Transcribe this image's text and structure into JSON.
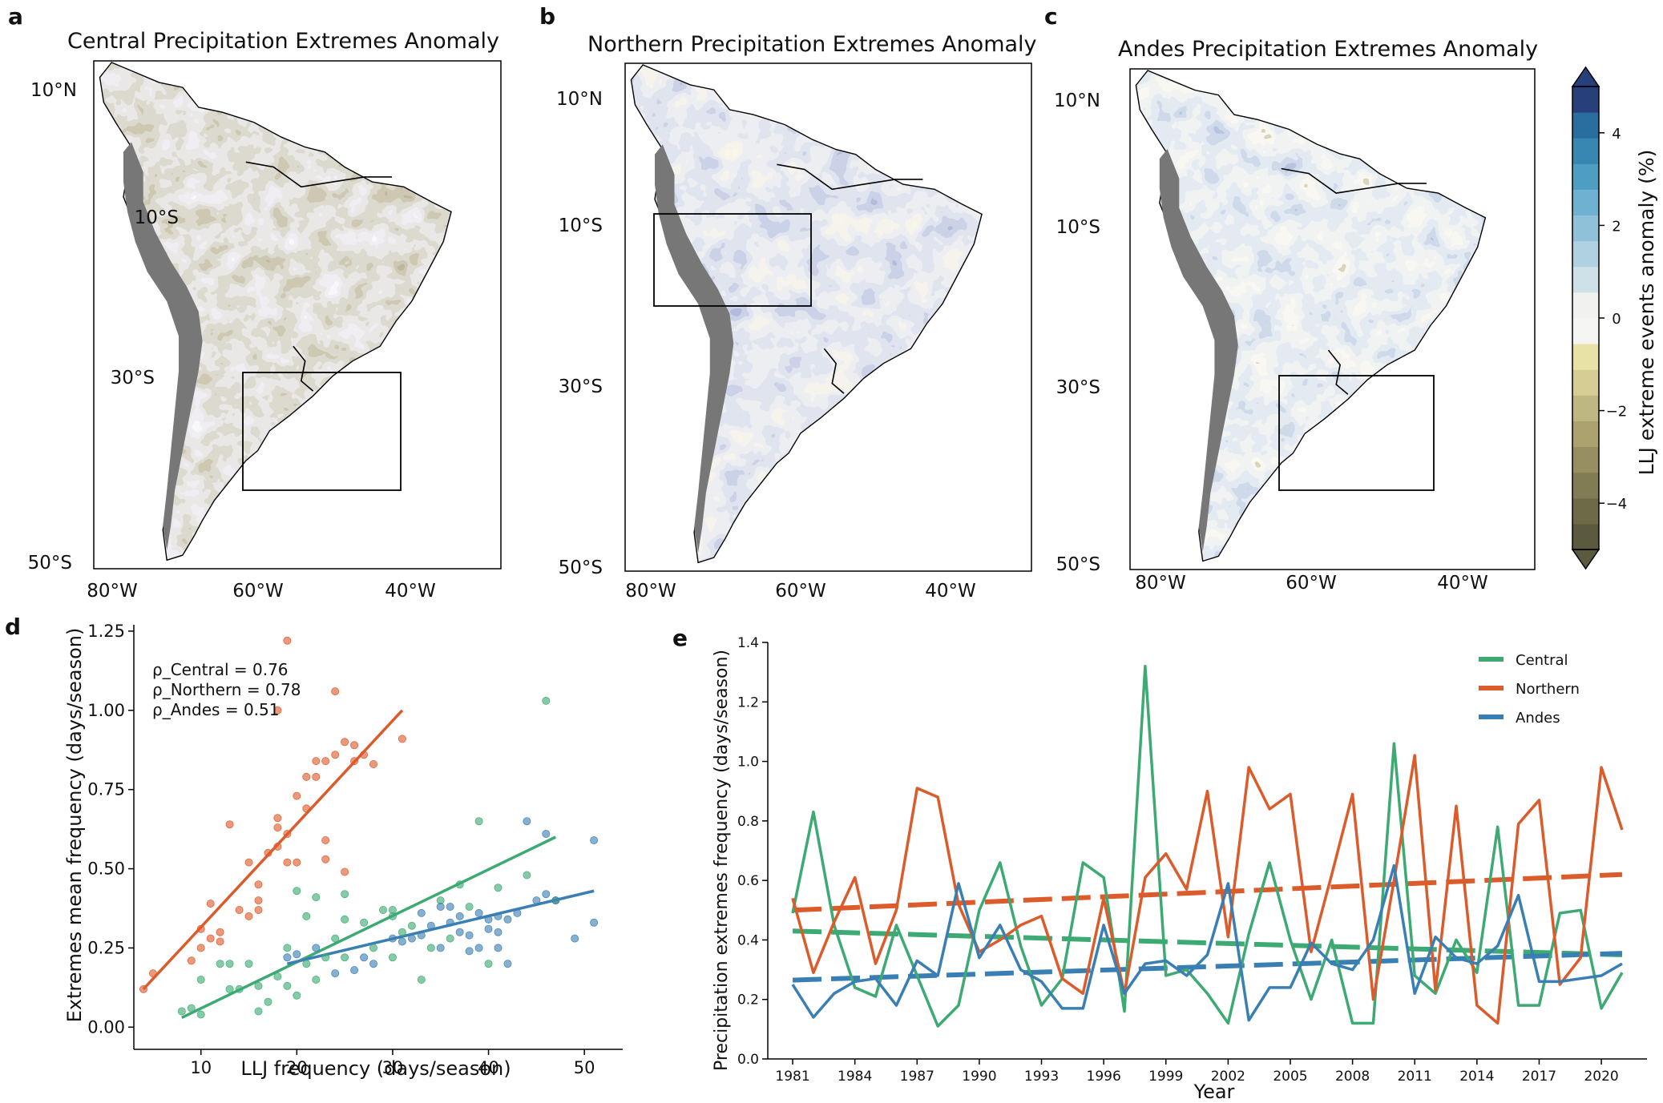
{
  "colors": {
    "central": "#3daa73",
    "northern": "#dc5b2b",
    "andes": "#3a7fb4",
    "ocean": "#ffffff",
    "andes_mask": "#777777",
    "box": "#000000",
    "cmap": [
      "#5b5a3f",
      "#6e6a48",
      "#827c54",
      "#978f61",
      "#aba270",
      "#bfb781",
      "#d6cd95",
      "#e8e2a6",
      "#f5f5f3",
      "#f1f1ef",
      "#cfe1e8",
      "#afd1e1",
      "#8fc2d9",
      "#6eb1d1",
      "#4e9dc3",
      "#3787b2",
      "#2a6e9f",
      "#273f7a"
    ]
  },
  "panels": {
    "a": {
      "letter": "a",
      "title": "Central Precipitation Extremes Anomaly",
      "lat_labels": [
        "10°N",
        "10°S",
        "30°S",
        "50°S"
      ],
      "lon_labels": [
        "80°W",
        "60°W",
        "40°W"
      ]
    },
    "b": {
      "letter": "b",
      "title": "Northern Precipitation Extremes Anomaly",
      "lat_labels": [
        "10°N",
        "10°S",
        "30°S",
        "50°S"
      ],
      "lon_labels": [
        "80°W",
        "60°W",
        "40°W"
      ]
    },
    "c": {
      "letter": "c",
      "title": "Andes Precipitation Extremes Anomaly",
      "lat_labels": [
        "10°N",
        "10°S",
        "30°S",
        "50°S"
      ],
      "lon_labels": [
        "80°W",
        "60°W",
        "40°W"
      ]
    },
    "d": {
      "letter": "d"
    },
    "e": {
      "letter": "e"
    }
  },
  "colorbar": {
    "label": "LLJ extreme events anomaly (%)",
    "ticks": [
      "4",
      "2",
      "0",
      "−2",
      "−4"
    ],
    "tick_values": [
      4,
      2,
      0,
      -2,
      -4
    ],
    "range": [
      -5,
      5
    ]
  },
  "chart_data": [
    {
      "type": "scatter",
      "panel": "d",
      "xlabel": "LLJ frequency (days/season)",
      "ylabel": "Extremes mean frequency (days/season)",
      "xlim": [
        3,
        54
      ],
      "ylim": [
        -0.07,
        1.27
      ],
      "xticks": [
        10,
        20,
        30,
        40,
        50
      ],
      "yticks": [
        0.0,
        0.25,
        0.5,
        0.75,
        1.0,
        1.25
      ],
      "ytick_labels": [
        "0.00",
        "0.25",
        "0.50",
        "0.75",
        "1.00",
        "1.25"
      ],
      "annotations": [
        "ρ_Central =  0.76",
        "ρ_Northern =  0.78",
        "ρ_Andes =  0.51"
      ],
      "series": [
        {
          "name": "Northern",
          "points": [
            [
              4,
              0.12
            ],
            [
              5,
              0.17
            ],
            [
              9,
              0.21
            ],
            [
              10,
              0.31
            ],
            [
              10,
              0.25
            ],
            [
              11,
              0.39
            ],
            [
              11,
              0.28
            ],
            [
              12,
              0.3
            ],
            [
              12,
              0.27
            ],
            [
              13,
              0.64
            ],
            [
              14,
              0.37
            ],
            [
              15,
              0.52
            ],
            [
              15,
              0.35
            ],
            [
              16,
              0.37
            ],
            [
              16,
              0.4
            ],
            [
              16,
              0.45
            ],
            [
              17,
              0.55
            ],
            [
              18,
              0.63
            ],
            [
              18,
              0.66
            ],
            [
              18,
              0.57
            ],
            [
              19,
              0.61
            ],
            [
              19,
              0.52
            ],
            [
              20,
              0.73
            ],
            [
              21,
              0.69
            ],
            [
              21,
              0.79
            ],
            [
              22,
              0.79
            ],
            [
              22,
              0.84
            ],
            [
              23,
              0.84
            ],
            [
              23,
              0.59
            ],
            [
              24,
              1.06
            ],
            [
              24,
              0.86
            ],
            [
              25,
              0.9
            ],
            [
              25,
              0.49
            ],
            [
              26,
              0.84
            ],
            [
              26,
              0.89
            ],
            [
              27,
              0.86
            ],
            [
              28,
              0.83
            ],
            [
              31,
              0.91
            ],
            [
              19,
              1.22
            ],
            [
              18,
              1.0
            ],
            [
              20,
              0.52
            ],
            [
              23,
              0.53
            ]
          ],
          "fit": [
            [
              4,
              0.12
            ],
            [
              31,
              1.0
            ]
          ]
        },
        {
          "name": "Central",
          "points": [
            [
              8,
              0.05
            ],
            [
              9,
              0.06
            ],
            [
              10,
              0.04
            ],
            [
              10,
              0.15
            ],
            [
              12,
              0.2
            ],
            [
              13,
              0.2
            ],
            [
              13,
              0.12
            ],
            [
              14,
              0.12
            ],
            [
              15,
              0.2
            ],
            [
              16,
              0.05
            ],
            [
              16,
              0.13
            ],
            [
              17,
              0.08
            ],
            [
              18,
              0.16
            ],
            [
              19,
              0.25
            ],
            [
              19,
              0.13
            ],
            [
              20,
              0.43
            ],
            [
              20,
              0.1
            ],
            [
              21,
              0.35
            ],
            [
              21,
              0.2
            ],
            [
              22,
              0.41
            ],
            [
              22,
              0.15
            ],
            [
              23,
              0.22
            ],
            [
              24,
              0.28
            ],
            [
              25,
              0.22
            ],
            [
              25,
              0.34
            ],
            [
              25,
              0.42
            ],
            [
              27,
              0.33
            ],
            [
              28,
              0.25
            ],
            [
              29,
              0.37
            ],
            [
              30,
              0.37
            ],
            [
              30,
              0.35
            ],
            [
              31,
              0.3
            ],
            [
              32,
              0.32
            ],
            [
              33,
              0.15
            ],
            [
              35,
              0.4
            ],
            [
              36,
              0.28
            ],
            [
              37,
              0.45
            ],
            [
              38,
              0.38
            ],
            [
              39,
              0.65
            ],
            [
              40,
              0.2
            ],
            [
              41,
              0.44
            ],
            [
              44,
              0.48
            ],
            [
              46,
              1.03
            ],
            [
              47,
              0.4
            ],
            [
              30,
              0.22
            ],
            [
              34,
              0.25
            ]
          ],
          "fit": [
            [
              8,
              0.03
            ],
            [
              47,
              0.6
            ]
          ]
        },
        {
          "name": "Andes",
          "points": [
            [
              19,
              0.22
            ],
            [
              20,
              0.23
            ],
            [
              22,
              0.25
            ],
            [
              24,
              0.17
            ],
            [
              26,
              0.18
            ],
            [
              28,
              0.2
            ],
            [
              30,
              0.28
            ],
            [
              31,
              0.27
            ],
            [
              32,
              0.28
            ],
            [
              33,
              0.29
            ],
            [
              34,
              0.32
            ],
            [
              35,
              0.25
            ],
            [
              35,
              0.38
            ],
            [
              36,
              0.33
            ],
            [
              36,
              0.38
            ],
            [
              37,
              0.3
            ],
            [
              37,
              0.35
            ],
            [
              38,
              0.29
            ],
            [
              38,
              0.24
            ],
            [
              39,
              0.36
            ],
            [
              39,
              0.25
            ],
            [
              40,
              0.31
            ],
            [
              40,
              0.34
            ],
            [
              41,
              0.3
            ],
            [
              41,
              0.35
            ],
            [
              41,
              0.25
            ],
            [
              42,
              0.2
            ],
            [
              42,
              0.34
            ],
            [
              43,
              0.36
            ],
            [
              44,
              0.65
            ],
            [
              45,
              0.4
            ],
            [
              46,
              0.61
            ],
            [
              46,
              0.42
            ],
            [
              47,
              0.4
            ],
            [
              49,
              0.28
            ],
            [
              51,
              0.33
            ],
            [
              51,
              0.59
            ],
            [
              33,
              0.36
            ],
            [
              27,
              0.22
            ]
          ],
          "fit": [
            [
              19,
              0.2
            ],
            [
              51,
              0.43
            ]
          ]
        }
      ]
    },
    {
      "type": "line",
      "panel": "e",
      "xlabel": "Year",
      "ylabel": "Precipitation extremes frequency (days/season)",
      "xlim": [
        1979.8,
        2022.2
      ],
      "ylim": [
        0.0,
        1.4
      ],
      "xticks": [
        1981,
        1984,
        1987,
        1990,
        1993,
        1996,
        1999,
        2002,
        2005,
        2008,
        2011,
        2014,
        2017,
        2020
      ],
      "yticks": [
        0.0,
        0.2,
        0.4,
        0.6,
        0.8,
        1.0,
        1.2,
        1.4
      ],
      "ytick_labels": [
        "0.0",
        "0.2",
        "0.4",
        "0.6",
        "0.8",
        "1.0",
        "1.2",
        "1.4"
      ],
      "legend": "top-right",
      "legend_entries": [
        "Central",
        "Northern",
        "Andes"
      ],
      "x": [
        1981,
        1982,
        1983,
        1984,
        1985,
        1986,
        1987,
        1988,
        1989,
        1990,
        1991,
        1992,
        1993,
        1994,
        1995,
        1996,
        1997,
        1998,
        1999,
        2000,
        2001,
        2002,
        2003,
        2004,
        2005,
        2006,
        2007,
        2008,
        2009,
        2010,
        2011,
        2012,
        2013,
        2014,
        2015,
        2016,
        2017,
        2018,
        2019,
        2020,
        2021
      ],
      "series": [
        {
          "name": "Central",
          "values": [
            0.49,
            0.83,
            0.45,
            0.24,
            0.21,
            0.45,
            0.28,
            0.11,
            0.18,
            0.5,
            0.66,
            0.38,
            0.18,
            0.27,
            0.66,
            0.61,
            0.16,
            1.32,
            0.28,
            0.3,
            0.22,
            0.12,
            0.42,
            0.66,
            0.4,
            0.2,
            0.4,
            0.12,
            0.12,
            1.06,
            0.28,
            0.22,
            0.4,
            0.29,
            0.78,
            0.18,
            0.18,
            0.49,
            0.5,
            0.17,
            0.29
          ],
          "trend": [
            0.43,
            0.35
          ]
        },
        {
          "name": "Northern",
          "values": [
            0.54,
            0.29,
            0.46,
            0.61,
            0.32,
            0.5,
            0.91,
            0.88,
            0.52,
            0.36,
            0.4,
            0.45,
            0.48,
            0.27,
            0.22,
            0.54,
            0.22,
            0.61,
            0.69,
            0.57,
            0.9,
            0.41,
            0.98,
            0.84,
            0.89,
            0.36,
            0.62,
            0.89,
            0.2,
            0.6,
            1.02,
            0.23,
            0.85,
            0.18,
            0.12,
            0.79,
            0.87,
            0.25,
            0.34,
            0.98,
            0.77
          ],
          "trend": [
            0.5,
            0.62
          ]
        },
        {
          "name": "Andes",
          "values": [
            0.25,
            0.14,
            0.22,
            0.26,
            0.27,
            0.18,
            0.33,
            0.28,
            0.59,
            0.34,
            0.45,
            0.3,
            0.26,
            0.17,
            0.17,
            0.45,
            0.22,
            0.32,
            0.33,
            0.28,
            0.35,
            0.59,
            0.13,
            0.24,
            0.24,
            0.39,
            0.32,
            0.3,
            0.4,
            0.65,
            0.22,
            0.41,
            0.34,
            0.32,
            0.38,
            0.55,
            0.26,
            0.26,
            0.27,
            0.28,
            0.32
          ],
          "trend": [
            0.265,
            0.355
          ]
        }
      ]
    }
  ]
}
